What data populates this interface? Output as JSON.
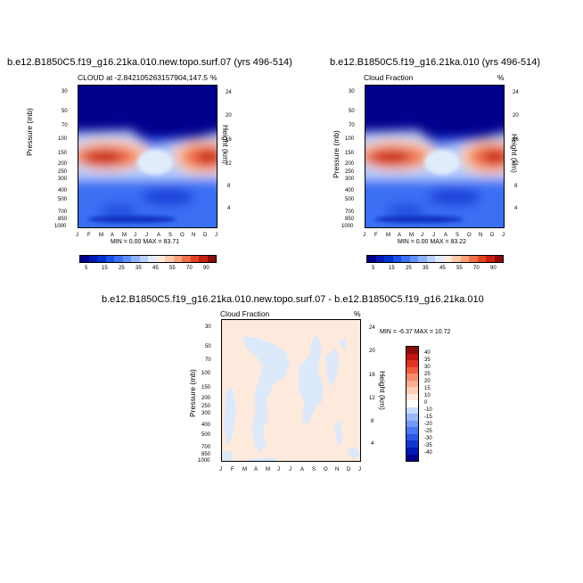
{
  "chart_data": [
    {
      "type": "heatmap",
      "title": "b.e12.B1850C5.f19_g16.21ka.010.new.topo.surf.07 (yrs 496-514)",
      "left_label": "CLOUD at -2.842105263157904,147.5",
      "right_label": "%",
      "ylabel": "Pressure (mb)",
      "y2label": "Height (km)",
      "x_ticks": [
        "J",
        "F",
        "M",
        "A",
        "M",
        "J",
        "J",
        "A",
        "S",
        "O",
        "N",
        "D",
        "J"
      ],
      "y_ticks": [
        "30",
        "50",
        "70",
        "100",
        "150",
        "200",
        "250",
        "300",
        "400",
        "500",
        "700",
        "850",
        "1000"
      ],
      "y2_ticks": [
        "24",
        "20",
        "16",
        "12",
        "8",
        "4"
      ],
      "min_max": "MIN =   0.00 MAX =  83.71",
      "min": 0.0,
      "max": 83.71
    },
    {
      "type": "heatmap",
      "title": "b.e12.B1850C5.f19_g16.21ka.010 (yrs 496-514)",
      "left_label": "Cloud Fraction",
      "right_label": "%",
      "ylabel": "Pressure (mb)",
      "y2label": "Height (km)",
      "x_ticks": [
        "J",
        "F",
        "M",
        "A",
        "M",
        "J",
        "J",
        "A",
        "S",
        "O",
        "N",
        "D",
        "J"
      ],
      "y_ticks": [
        "30",
        "50",
        "70",
        "100",
        "150",
        "200",
        "250",
        "300",
        "400",
        "500",
        "700",
        "850",
        "1000"
      ],
      "y2_ticks": [
        "24",
        "20",
        "16",
        "12",
        "8",
        "4"
      ],
      "min_max": "MIN =   0.00 MAX =  83.22",
      "min": 0.0,
      "max": 83.22
    },
    {
      "type": "heatmap",
      "title": "b.e12.B1850C5.f19_g16.21ka.010.new.topo.surf.07 - b.e12.B1850C5.f19_g16.21ka.010",
      "left_label": "Cloud Fraction",
      "right_label": "%",
      "ylabel": "Pressure (mb)",
      "y2label": "Height (km)",
      "x_ticks": [
        "J",
        "F",
        "M",
        "A",
        "M",
        "J",
        "J",
        "A",
        "S",
        "O",
        "N",
        "D",
        "J"
      ],
      "y_ticks": [
        "30",
        "50",
        "70",
        "100",
        "150",
        "200",
        "250",
        "300",
        "400",
        "500",
        "700",
        "850",
        "1000"
      ],
      "y2_ticks": [
        "24",
        "20",
        "16",
        "12",
        "8",
        "4"
      ],
      "min_max": "MIN =  -6.37 MAX =  10.72",
      "min": -6.37,
      "max": 10.72
    }
  ],
  "colorbar_top": {
    "colors": [
      "#00008c",
      "#0018b4",
      "#0030d0",
      "#1a50e8",
      "#3c70f8",
      "#6090fc",
      "#8cb0fc",
      "#b8d0fc",
      "#e0ecfc",
      "#fce8dc",
      "#fcc8a8",
      "#fca07c",
      "#f07048",
      "#e04420",
      "#c82010",
      "#8c0c0c"
    ],
    "labels": [
      "5",
      "15",
      "25",
      "35",
      "45",
      "55",
      "70",
      "90"
    ]
  },
  "colorbar_diff": {
    "colors": [
      "#00008c",
      "#0018b4",
      "#1038d0",
      "#2858e4",
      "#4878f4",
      "#7098f8",
      "#98b8fc",
      "#c8dcfc",
      "#ffffff",
      "#fdeadc",
      "#fcd0b4",
      "#fcb090",
      "#f88c6c",
      "#f06040",
      "#e03420",
      "#c41410",
      "#8c0c0c"
    ],
    "labels": [
      "40",
      "35",
      "30",
      "25",
      "20",
      "15",
      "10",
      "0",
      "-10",
      "-15",
      "-20",
      "-25",
      "-30",
      "-35",
      "-40"
    ]
  }
}
